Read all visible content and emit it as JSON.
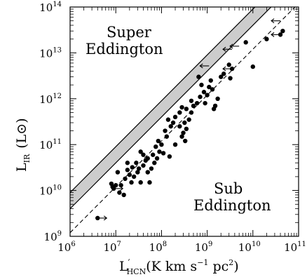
{
  "chart_data": {
    "type": "scatter",
    "title": "",
    "xlabel": {
      "symbol": "L",
      "prime": "′",
      "subscript": "HCN",
      "unit": "(K km s",
      "unit_exp1": "−1",
      "unit_mid": " pc",
      "unit_exp2": "2",
      "unit_end": ")"
    },
    "ylabel": {
      "symbol": "L",
      "subscript": "IR",
      "unit": "(L",
      "unit_symbol": "⊙",
      "unit_end": ")"
    },
    "xscale": "log",
    "yscale": "log",
    "xlim": [
      1000000.0,
      100000000000.0
    ],
    "ylim": [
      1000000000.0,
      100000000000000.0
    ],
    "xticks": [
      {
        "base": "10",
        "exp": "6"
      },
      {
        "base": "10",
        "exp": "7"
      },
      {
        "base": "10",
        "exp": "8"
      },
      {
        "base": "10",
        "exp": "9"
      },
      {
        "base": "10",
        "exp": "10"
      },
      {
        "base": "10",
        "exp": "11"
      }
    ],
    "yticks": [
      {
        "base": "10",
        "exp": "9"
      },
      {
        "base": "10",
        "exp": "10"
      },
      {
        "base": "10",
        "exp": "11"
      },
      {
        "base": "10",
        "exp": "12"
      },
      {
        "base": "10",
        "exp": "13"
      },
      {
        "base": "10",
        "exp": "14"
      }
    ],
    "regions": [
      {
        "label_line1": "Super",
        "label_line2": "Eddington"
      },
      {
        "label_line1": "Sub",
        "label_line2": "Eddington"
      }
    ],
    "band": {
      "lower_line": {
        "x": [
          1000000.0,
          100000000000.0
        ],
        "y": [
          4000000000.0,
          400000000000000.0
        ]
      },
      "upper_line": {
        "x": [
          1000000.0,
          100000000000.0
        ],
        "y": [
          9000000000.0,
          900000000000000.0
        ]
      },
      "fill": "#cccccc"
    },
    "dashed_line": {
      "x": [
        1000000.0,
        100000000000.0
      ],
      "y": [
        1200000000.0,
        120000000000000.0
      ]
    },
    "points": [
      {
        "x": 8000000.0,
        "y": 14000000000.0
      },
      {
        "x": 9000000.0,
        "y": 11000000000.0
      },
      {
        "x": 8500000.0,
        "y": 12000000000.0
      },
      {
        "x": 10000000.0,
        "y": 13000000000.0
      },
      {
        "x": 12000000.0,
        "y": 9000000000.0
      },
      {
        "x": 15000000.0,
        "y": 8000000000.0
      },
      {
        "x": 13000000.0,
        "y": 13000000000.0
      },
      {
        "x": 16000000.0,
        "y": 18000000000.0
      },
      {
        "x": 20000000.0,
        "y": 22000000000.0
      },
      {
        "x": 18000000.0,
        "y": 28000000000.0
      },
      {
        "x": 23000000.0,
        "y": 32000000000.0
      },
      {
        "x": 22000000.0,
        "y": 15000000000.0
      },
      {
        "x": 25000000.0,
        "y": 20000000000.0
      },
      {
        "x": 28000000.0,
        "y": 40000000000.0
      },
      {
        "x": 30000000.0,
        "y": 25000000000.0
      },
      {
        "x": 35000000.0,
        "y": 15000000000.0
      },
      {
        "x": 32000000.0,
        "y": 30000000000.0
      },
      {
        "x": 40000000.0,
        "y": 35000000000.0
      },
      {
        "x": 45000000.0,
        "y": 45000000000.0
      },
      {
        "x": 50000000.0,
        "y": 25000000000.0
      },
      {
        "x": 55000000.0,
        "y": 15000000000.0
      },
      {
        "x": 60000000.0,
        "y": 30000000000.0
      },
      {
        "x": 50000000.0,
        "y": 50000000000.0
      },
      {
        "x": 40000000.0,
        "y": 60000000000.0
      },
      {
        "x": 35000000.0,
        "y": 70000000000.0
      },
      {
        "x": 65000000.0,
        "y": 60000000000.0
      },
      {
        "x": 70000000.0,
        "y": 40000000000.0
      },
      {
        "x": 80000000.0,
        "y": 50000000000.0
      },
      {
        "x": 90000000.0,
        "y": 70000000000.0
      },
      {
        "x": 100000000.0,
        "y": 100000000000.0
      },
      {
        "x": 110000000.0,
        "y": 65000000000.0
      },
      {
        "x": 75000000.0,
        "y": 90000000000.0
      },
      {
        "x": 85000000.0,
        "y": 120000000000.0
      },
      {
        "x": 130000000.0,
        "y": 150000000000.0
      },
      {
        "x": 160000000.0,
        "y": 250000000000.0
      },
      {
        "x": 140000000.0,
        "y": 350000000000.0
      },
      {
        "x": 180000000.0,
        "y": 300000000000.0
      },
      {
        "x": 200000000.0,
        "y": 400000000000.0
      },
      {
        "x": 250000000.0,
        "y": 250000000000.0
      },
      {
        "x": 280000000.0,
        "y": 150000000000.0
      },
      {
        "x": 300000000.0,
        "y": 180000000000.0
      },
      {
        "x": 330000000.0,
        "y": 120000000000.0
      },
      {
        "x": 350000000.0,
        "y": 220000000000.0
      },
      {
        "x": 320000000.0,
        "y": 300000000000.0
      },
      {
        "x": 400000000.0,
        "y": 350000000000.0
      },
      {
        "x": 450000000.0,
        "y": 500000000000.0
      },
      {
        "x": 350000000.0,
        "y": 600000000000.0
      },
      {
        "x": 500000000.0,
        "y": 700000000000.0
      },
      {
        "x": 600000000.0,
        "y": 800000000000.0
      },
      {
        "x": 700000000.0,
        "y": 1100000000000.0
      },
      {
        "x": 850000000.0,
        "y": 1400000000000.0
      },
      {
        "x": 1000000000.0,
        "y": 1200000000000.0
      },
      {
        "x": 1100000000.0,
        "y": 1800000000000.0
      },
      {
        "x": 900000000.0,
        "y": 800000000000.0
      },
      {
        "x": 1200000000.0,
        "y": 2500000000000.0
      },
      {
        "x": 1300000000.0,
        "y": 1600000000000.0
      },
      {
        "x": 1400000000.0,
        "y": 600000000000.0
      },
      {
        "x": 1500000000.0,
        "y": 700000000000.0
      },
      {
        "x": 750000000.0,
        "y": 2000000000000.0
      },
      {
        "x": 250000000.0,
        "y": 500000000000.0
      },
      {
        "x": 450000000.0,
        "y": 900000000000.0
      },
      {
        "x": 650000000.0,
        "y": 3000000000000.0
      },
      {
        "x": 1700000000.0,
        "y": 1000000000000.0
      },
      {
        "x": 2000000000.0,
        "y": 3000000000000.0
      },
      {
        "x": 2300000000.0,
        "y": 3500000000000.0
      },
      {
        "x": 3000000000.0,
        "y": 5500000000000.0
      },
      {
        "x": 3500000000.0,
        "y": 4500000000000.0
      },
      {
        "x": 3200000000.0,
        "y": 2800000000000.0
      },
      {
        "x": 7000000000.0,
        "y": 17000000000000.0
      },
      {
        "x": 10000000000.0,
        "y": 5000000000000.0
      },
      {
        "x": 20000000000.0,
        "y": 20000000000000.0
      },
      {
        "x": 40000000000.0,
        "y": 25000000000000.0
      },
      {
        "x": 45000000000.0,
        "y": 30000000000000.0
      },
      {
        "x": 150000000.0,
        "y": 55000000000.0
      },
      {
        "x": 200000000.0,
        "y": 100000000000.0
      },
      {
        "x": 18000000.0,
        "y": 40000000000.0
      },
      {
        "x": 11000000.0,
        "y": 25000000000.0
      },
      {
        "x": 4000000.0,
        "y": 2500000000.0
      },
      {
        "x": 120000000.0,
        "y": 200000000000.0
      },
      {
        "x": 280000000.0,
        "y": 650000000000.0
      }
    ],
    "limits": [
      {
        "x": 4000000.0,
        "y": 2500000000.0,
        "direction": "right"
      },
      {
        "x": 9000000.0,
        "y": 11000000000.0,
        "direction": "right"
      },
      {
        "x": 1100000000.0,
        "y": 5200000000000.0,
        "direction": "left"
      },
      {
        "x": 3500000000.0,
        "y": 12000000000000.0,
        "direction": "left"
      },
      {
        "x": 3500000000.0,
        "y": 4500000000000.0,
        "direction": "left"
      },
      {
        "x": 5000000000.0,
        "y": 14000000000000.0,
        "direction": "left"
      },
      {
        "x": 40000000000.0,
        "y": 50000000000000.0,
        "direction": "left"
      },
      {
        "x": 40000000000.0,
        "y": 25000000000000.0,
        "direction": "left"
      }
    ]
  }
}
